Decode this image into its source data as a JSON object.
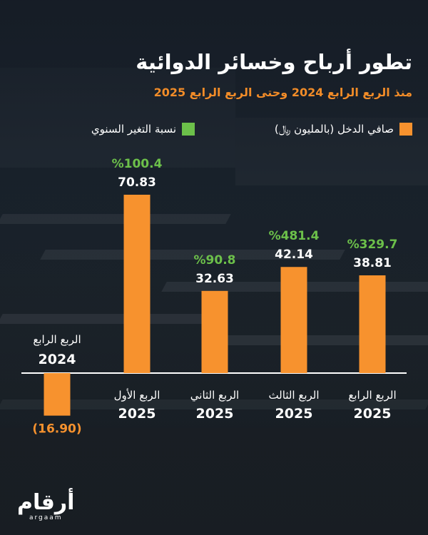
{
  "title": "تطور أرباح وخسائر الدوائية",
  "subtitle": "منذ الربع الرابع 2024 وحتى الربع الرابع 2025",
  "legend": {
    "income_label": "صافي الدخل (بالمليون ﷼)",
    "change_label": "نسبة التغير السنوي"
  },
  "colors": {
    "income": "#f7922e",
    "change": "#6cc04a",
    "subtitle": "#f28c28"
  },
  "chart_data": {
    "type": "bar",
    "categories": [
      [
        "الربع الرابع",
        "2024"
      ],
      [
        "الربع الأول",
        "2025"
      ],
      [
        "الربع الثاني",
        "2025"
      ],
      [
        "الربع الثالث",
        "2025"
      ],
      [
        "الربع الرابع",
        "2025"
      ]
    ],
    "series": [
      {
        "name": "صافي الدخل (بالمليون ﷼)",
        "values": [
          -16.9,
          70.83,
          32.63,
          42.14,
          38.81
        ],
        "labels": [
          "(16.90)",
          "70.83",
          "32.63",
          "42.14",
          "38.81"
        ]
      },
      {
        "name": "نسبة التغير السنوي",
        "values": [
          null,
          100.4,
          90.8,
          481.4,
          329.7
        ],
        "labels": [
          "",
          "%100.4",
          "%90.8",
          "%481.4",
          "%329.7"
        ]
      }
    ],
    "title": "تطور أرباح وخسائر الدوائية",
    "xlabel": "",
    "ylabel": ""
  },
  "logo": {
    "ar": "أرقام",
    "en": "argaam"
  }
}
